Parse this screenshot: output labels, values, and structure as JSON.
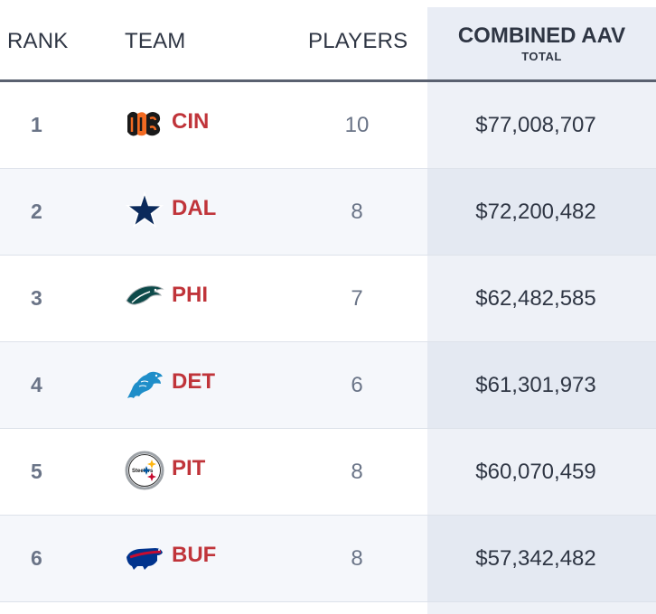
{
  "header": {
    "rank": "RANK",
    "team": "TEAM",
    "players": "PLAYERS",
    "aav": "COMBINED AAV",
    "aav_sub": "TOTAL"
  },
  "rows": [
    {
      "rank": "1",
      "abbr": "CIN",
      "logo": "bengals-logo-icon",
      "players": "10",
      "aav": "$77,008,707"
    },
    {
      "rank": "2",
      "abbr": "DAL",
      "logo": "cowboys-star-logo-icon",
      "players": "8",
      "aav": "$72,200,482"
    },
    {
      "rank": "3",
      "abbr": "PHI",
      "logo": "eagles-logo-icon",
      "players": "7",
      "aav": "$62,482,585"
    },
    {
      "rank": "4",
      "abbr": "DET",
      "logo": "lions-logo-icon",
      "players": "6",
      "aav": "$61,301,973"
    },
    {
      "rank": "5",
      "abbr": "PIT",
      "logo": "steelers-logo-icon",
      "players": "8",
      "aav": "$60,070,459"
    },
    {
      "rank": "6",
      "abbr": "BUF",
      "logo": "bills-logo-icon",
      "players": "8",
      "aav": "$57,342,482"
    }
  ],
  "logo_text": {
    "pit": "Steelers"
  },
  "colors": {
    "team_abbr": "#c0343a",
    "header_text": "#2f3644",
    "muted_text": "#6a7487",
    "aav_column_bg": "#e9edf5"
  }
}
